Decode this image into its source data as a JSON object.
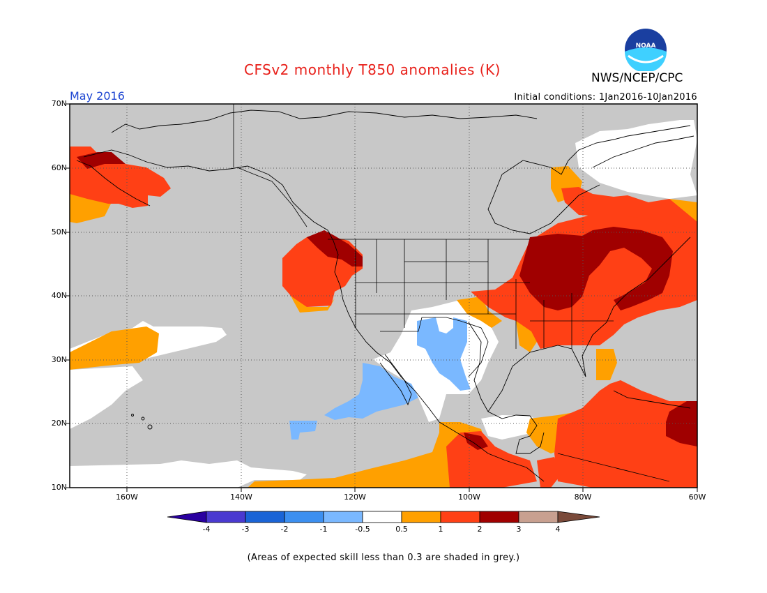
{
  "title": "CFSv2 monthly T850 anomalies (K)",
  "agency": "NWS/NCEP/CPC",
  "logo_text": "NOAA",
  "month": "May 2016",
  "initial_conditions": "Initial conditions: 1Jan2016-10Jan2016",
  "footnote": "(Areas of expected skill less than 0.3 are shaded in grey.)",
  "colors": {
    "title": "#e8201a",
    "month": "#1e46d2",
    "grey_skill": "#c8c8c8",
    "neutral": "#ffffff",
    "cold_05_1": "#7ab8ff",
    "warm_05_1": "#ffa000",
    "warm_1_2": "#ff4015",
    "warm_2_3": "#a00000"
  },
  "map": {
    "lat_labels": [
      "70N",
      "60N",
      "50N",
      "40N",
      "30N",
      "20N",
      "10N"
    ],
    "lon_labels": [
      "160W",
      "140W",
      "120W",
      "100W",
      "80W",
      "60W"
    ]
  },
  "colorbar": {
    "labels": [
      "-4",
      "-3",
      "-2",
      "-1",
      "-0.5",
      "0.5",
      "1",
      "2",
      "3",
      "4"
    ],
    "colors": [
      "#2a00a0",
      "#4a3ad0",
      "#1a64d6",
      "#3c8ff0",
      "#7ab8ff",
      "#ffffff",
      "#ffa000",
      "#ff4015",
      "#a00000",
      "#c8a090",
      "#7a4a3a"
    ]
  }
}
